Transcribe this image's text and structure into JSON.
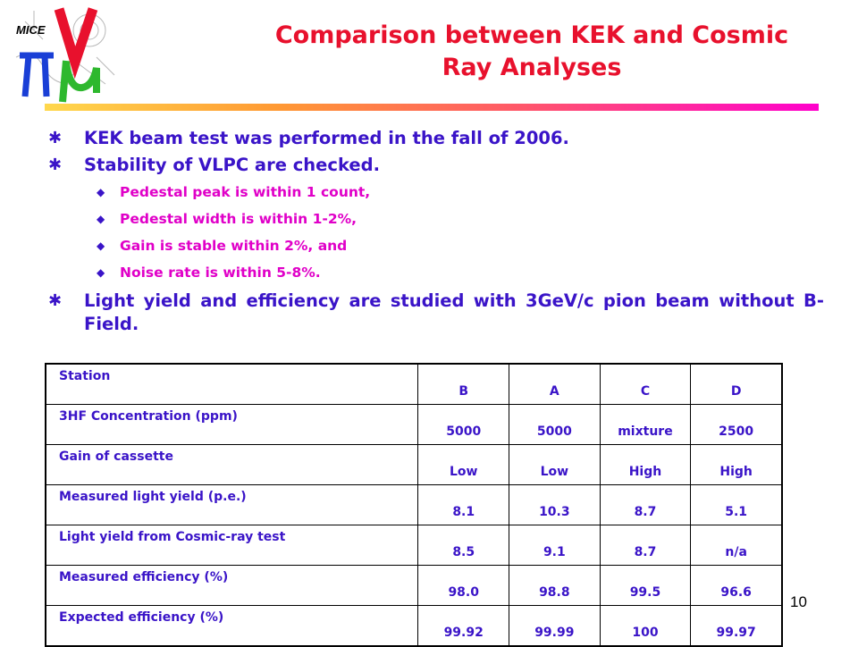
{
  "logo": {
    "text": "MICE"
  },
  "slide": {
    "title_line1": "Comparison between KEK and Cosmic",
    "title_line2": "Ray Analyses",
    "page_number": "10"
  },
  "bullets": [
    "KEK beam test was performed in the fall of 2006.",
    "Stability of VLPC are checked."
  ],
  "sub_bullets": [
    "Pedestal peak is within 1 count,",
    "Pedestal width is within 1-2%,",
    "Gain is stable within 2%, and",
    "Noise rate is within 5-8%."
  ],
  "bullet_last": "Light yield and efficiency are studied with 3GeV/c pion beam without B-Field.",
  "table": {
    "rows": [
      {
        "label": "Station",
        "values": [
          "B",
          "A",
          "C",
          "D"
        ]
      },
      {
        "label": "3HF Concentration (ppm)",
        "values": [
          "5000",
          "5000",
          "mixture",
          "2500"
        ]
      },
      {
        "label": "Gain of cassette",
        "values": [
          "Low",
          "Low",
          "High",
          "High"
        ]
      },
      {
        "label": "Measured light yield (p.e.)",
        "values": [
          "8.1",
          "10.3",
          "8.7",
          "5.1"
        ]
      },
      {
        "label": "Light yield from Cosmic-ray test",
        "values": [
          "8.5",
          "9.1",
          "8.7",
          "n/a"
        ]
      },
      {
        "label": "Measured efficiency (%)",
        "values": [
          "98.0",
          "98.8",
          "99.5",
          "96.6"
        ]
      },
      {
        "label": "Expected efficiency (%)",
        "values": [
          "99.92",
          "99.99",
          "100",
          "99.97"
        ]
      }
    ]
  },
  "colors": {
    "title": "#e8112d",
    "text": "#3a14c8",
    "sub_text": "#e000c8",
    "logo_pi": "#1a3fd6",
    "logo_v": "#e8112d",
    "logo_mu": "#2eb82e"
  }
}
